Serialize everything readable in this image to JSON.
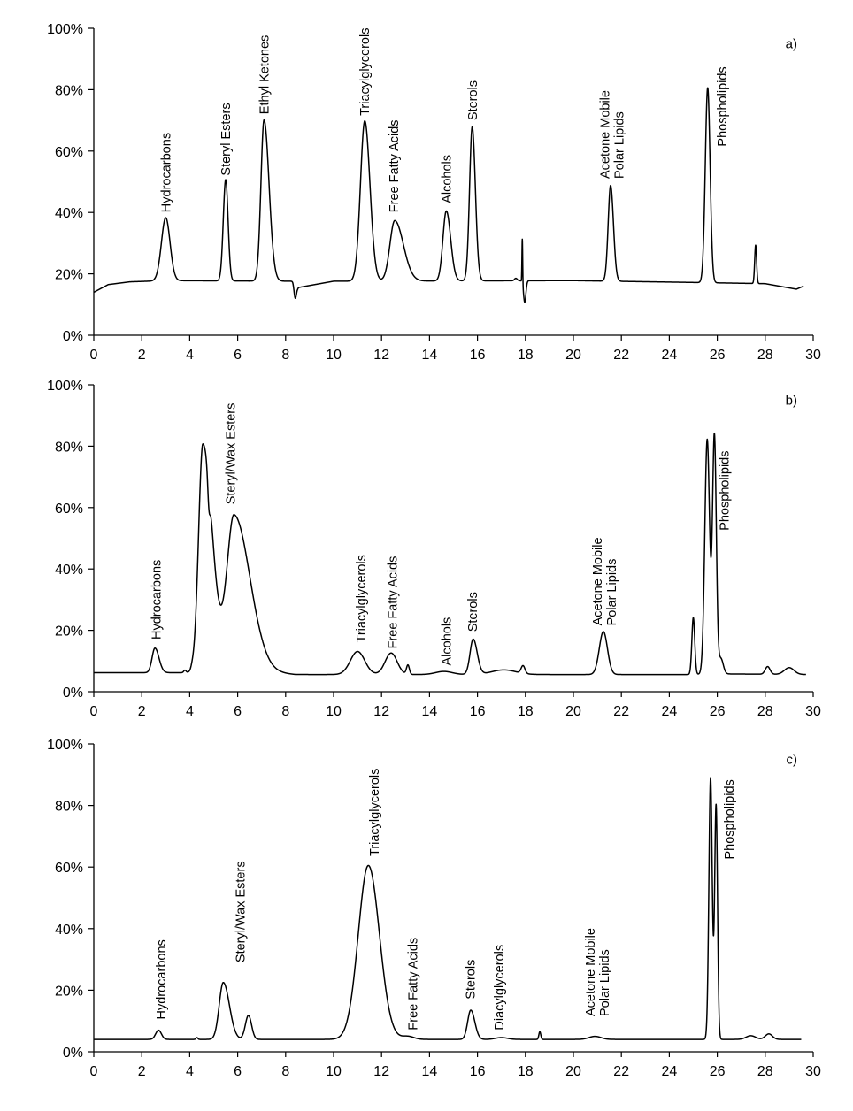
{
  "chart_data": [
    {
      "type": "line",
      "panel_label": "a)",
      "xlim": [
        0,
        30
      ],
      "ylim": [
        0,
        100
      ],
      "x_ticks": [
        0,
        2,
        4,
        6,
        8,
        10,
        12,
        14,
        16,
        18,
        20,
        22,
        24,
        26,
        28,
        30
      ],
      "y_ticks": [
        0,
        20,
        40,
        60,
        80,
        100
      ],
      "y_tick_labels": [
        "0%",
        "20%",
        "40%",
        "60%",
        "80%",
        "100%"
      ],
      "x_end": 29.6,
      "baseline": [
        [
          0,
          14
        ],
        [
          0.6,
          16.5
        ],
        [
          1.5,
          17.4
        ],
        [
          3,
          17.8
        ],
        [
          8.3,
          17.6
        ],
        [
          8.5,
          15.5
        ],
        [
          10,
          17.6
        ],
        [
          20,
          17.8
        ],
        [
          25,
          17.2
        ],
        [
          28,
          16.8
        ],
        [
          29.3,
          15
        ],
        [
          29.6,
          16
        ]
      ],
      "peaks": [
        {
          "x": 3.0,
          "height": 20.5,
          "width": 0.18,
          "tail": 1.0
        },
        {
          "x": 5.5,
          "height": 33,
          "width": 0.1,
          "tail": 1.0
        },
        {
          "x": 7.1,
          "height": 52.5,
          "width": 0.13,
          "tail": 1.6
        },
        {
          "x": 8.4,
          "height": -4.5,
          "width": 0.05,
          "tail": 1.0
        },
        {
          "x": 11.3,
          "height": 52.2,
          "width": 0.18,
          "tail": 1.2
        },
        {
          "x": 12.55,
          "height": 19.7,
          "width": 0.2,
          "tail": 1.8
        },
        {
          "x": 14.7,
          "height": 22.8,
          "width": 0.14,
          "tail": 1.3
        },
        {
          "x": 15.78,
          "height": 50.2,
          "width": 0.11,
          "tail": 1.2
        },
        {
          "x": 17.6,
          "height": 0.8,
          "width": 0.06,
          "tail": 1.0
        },
        {
          "x": 17.87,
          "height": 14.5,
          "width": 0.015,
          "tail": 1.0
        },
        {
          "x": 17.97,
          "height": -7,
          "width": 0.05,
          "tail": 1.0
        },
        {
          "x": 21.55,
          "height": 31.2,
          "width": 0.1,
          "tail": 1.2
        },
        {
          "x": 25.6,
          "height": 63.5,
          "width": 0.1,
          "tail": 1.0
        },
        {
          "x": 27.6,
          "height": 12.5,
          "width": 0.04,
          "tail": 1.0
        }
      ],
      "annotations": [
        {
          "lines": [
            "Hydrocarbons"
          ],
          "x": 3.0,
          "y": 40
        },
        {
          "lines": [
            "Steryl Esters"
          ],
          "x": 5.5,
          "y": 52
        },
        {
          "lines": [
            "Ethyl Ketones"
          ],
          "x": 7.1,
          "y": 72
        },
        {
          "lines": [
            "Triacylglycerols"
          ],
          "x": 11.3,
          "y": 71.5
        },
        {
          "lines": [
            "Free Fatty Acids"
          ],
          "x": 12.5,
          "y": 40
        },
        {
          "lines": [
            "Alcohols"
          ],
          "x": 14.7,
          "y": 43
        },
        {
          "lines": [
            "Sterols"
          ],
          "x": 15.8,
          "y": 70
        },
        {
          "lines": [
            "Acetone Mobile",
            "Polar Lipids"
          ],
          "x": 21.6,
          "y": 51
        },
        {
          "lines": [
            "Phospholipids"
          ],
          "x": 26.2,
          "y": 61.5
        }
      ]
    },
    {
      "type": "line",
      "panel_label": "b)",
      "xlim": [
        0,
        30
      ],
      "ylim": [
        0,
        100
      ],
      "x_ticks": [
        0,
        2,
        4,
        6,
        8,
        10,
        12,
        14,
        16,
        18,
        20,
        22,
        24,
        26,
        28,
        30
      ],
      "y_ticks": [
        0,
        20,
        40,
        60,
        80,
        100
      ],
      "y_tick_labels": [
        "0%",
        "20%",
        "40%",
        "60%",
        "80%",
        "100%"
      ],
      "x_end": 29.7,
      "baseline": [
        [
          0,
          6.2
        ],
        [
          4.2,
          6.2
        ],
        [
          7,
          6.5
        ],
        [
          8.4,
          5.6
        ],
        [
          17.9,
          5.6
        ],
        [
          18.0,
          5.6
        ],
        [
          24.8,
          5.6
        ],
        [
          26.2,
          5.8
        ],
        [
          29.7,
          5.6
        ]
      ],
      "peaks": [
        {
          "x": 2.55,
          "height": 8,
          "width": 0.12,
          "tail": 1.4
        },
        {
          "x": 3.8,
          "height": 0.8,
          "width": 0.05,
          "tail": 1.0
        },
        {
          "x": 4.1,
          "height": 0.7,
          "width": 0.05,
          "tail": 1.0
        },
        {
          "x": 4.55,
          "height": 74.5,
          "width": 0.18,
          "tail": 2.2
        },
        {
          "x": 4.8,
          "height": -8,
          "width": 0.05,
          "tail": 1.0
        },
        {
          "x": 5.85,
          "height": 51,
          "width": 0.3,
          "tail": 2.2
        },
        {
          "x": 11.0,
          "height": 7.5,
          "width": 0.3,
          "tail": 1.0
        },
        {
          "x": 12.4,
          "height": 7,
          "width": 0.25,
          "tail": 1.0
        },
        {
          "x": 13.1,
          "height": 3,
          "width": 0.06,
          "tail": 1.0
        },
        {
          "x": 14.6,
          "height": 1,
          "width": 0.35,
          "tail": 1.0
        },
        {
          "x": 15.82,
          "height": 11.5,
          "width": 0.13,
          "tail": 1.3
        },
        {
          "x": 17.1,
          "height": 1.5,
          "width": 0.5,
          "tail": 1.0
        },
        {
          "x": 17.9,
          "height": 2.5,
          "width": 0.08,
          "tail": 1.0
        },
        {
          "x": 21.25,
          "height": 14,
          "width": 0.17,
          "tail": 1.0
        },
        {
          "x": 25.0,
          "height": 18.5,
          "width": 0.06,
          "tail": 1.0
        },
        {
          "x": 25.58,
          "height": 76.5,
          "width": 0.1,
          "tail": 1.0
        },
        {
          "x": 25.88,
          "height": 77.5,
          "width": 0.08,
          "tail": 1.0
        },
        {
          "x": 26.15,
          "height": 5,
          "width": 0.1,
          "tail": 1.0
        },
        {
          "x": 28.1,
          "height": 2.5,
          "width": 0.1,
          "tail": 1.0
        },
        {
          "x": 29.0,
          "height": 2.2,
          "width": 0.2,
          "tail": 1.0
        }
      ],
      "annotations": [
        {
          "lines": [
            "Hydrocarbons"
          ],
          "x": 2.6,
          "y": 17
        },
        {
          "lines": [
            "Steryl/Wax Esters"
          ],
          "x": 5.7,
          "y": 61
        },
        {
          "lines": [
            "Triacylglycerols"
          ],
          "x": 11.15,
          "y": 16
        },
        {
          "lines": [
            "Free Fatty Acids"
          ],
          "x": 12.45,
          "y": 14
        },
        {
          "lines": [
            "Alcohols"
          ],
          "x": 14.7,
          "y": 8.5
        },
        {
          "lines": [
            "Sterols"
          ],
          "x": 15.8,
          "y": 19.5
        },
        {
          "lines": [
            "Acetone Mobile",
            "Polar Lipids"
          ],
          "x": 21.3,
          "y": 21.5
        },
        {
          "lines": [
            "Phospholipids"
          ],
          "x": 26.3,
          "y": 52.5
        }
      ]
    },
    {
      "type": "line",
      "panel_label": "c)",
      "xlim": [
        0,
        30
      ],
      "ylim": [
        0,
        100
      ],
      "x_ticks": [
        0,
        2,
        4,
        6,
        8,
        10,
        12,
        14,
        16,
        18,
        20,
        22,
        24,
        26,
        28,
        30
      ],
      "y_ticks": [
        0,
        20,
        40,
        60,
        80,
        100
      ],
      "y_tick_labels": [
        "0%",
        "20%",
        "40%",
        "60%",
        "80%",
        "100%"
      ],
      "x_end": 29.5,
      "baseline": [
        [
          0,
          4
        ],
        [
          29.5,
          4
        ]
      ],
      "peaks": [
        {
          "x": 2.7,
          "height": 3,
          "width": 0.12,
          "tail": 1.0
        },
        {
          "x": 4.3,
          "height": 0.6,
          "width": 0.04,
          "tail": 1.0
        },
        {
          "x": 5.4,
          "height": 18.5,
          "width": 0.17,
          "tail": 1.5
        },
        {
          "x": 6.45,
          "height": 7.8,
          "width": 0.13,
          "tail": 1.0
        },
        {
          "x": 11.45,
          "height": 56.5,
          "width": 0.42,
          "tail": 1.1
        },
        {
          "x": 13.1,
          "height": 1,
          "width": 0.25,
          "tail": 1.0
        },
        {
          "x": 15.72,
          "height": 9.5,
          "width": 0.13,
          "tail": 1.3
        },
        {
          "x": 17.0,
          "height": 0.6,
          "width": 0.25,
          "tail": 1.0
        },
        {
          "x": 18.6,
          "height": 2.5,
          "width": 0.04,
          "tail": 1.0
        },
        {
          "x": 20.9,
          "height": 1,
          "width": 0.25,
          "tail": 1.0
        },
        {
          "x": 25.72,
          "height": 85,
          "width": 0.07,
          "tail": 1.0
        },
        {
          "x": 25.95,
          "height": 76,
          "width": 0.06,
          "tail": 1.0
        },
        {
          "x": 27.4,
          "height": 1.2,
          "width": 0.2,
          "tail": 1.0
        },
        {
          "x": 28.15,
          "height": 1.8,
          "width": 0.15,
          "tail": 1.0
        }
      ],
      "annotations": [
        {
          "lines": [
            "Hydrocarbons"
          ],
          "x": 2.8,
          "y": 10.5
        },
        {
          "lines": [
            "Steryl/Wax Esters"
          ],
          "x": 6.1,
          "y": 29
        },
        {
          "lines": [
            "Triacylglycerols"
          ],
          "x": 11.7,
          "y": 63.5
        },
        {
          "lines": [
            "Free Fatty Acids"
          ],
          "x": 13.3,
          "y": 7
        },
        {
          "lines": [
            "Sterols"
          ],
          "x": 15.7,
          "y": 17
        },
        {
          "lines": [
            "Diacylglycerols"
          ],
          "x": 16.9,
          "y": 7
        },
        {
          "lines": [
            "Acetone Mobile",
            "Polar Lipids"
          ],
          "x": 21.0,
          "y": 11.5
        },
        {
          "lines": [
            "Phospholipids"
          ],
          "x": 26.5,
          "y": 62.5
        }
      ]
    }
  ]
}
